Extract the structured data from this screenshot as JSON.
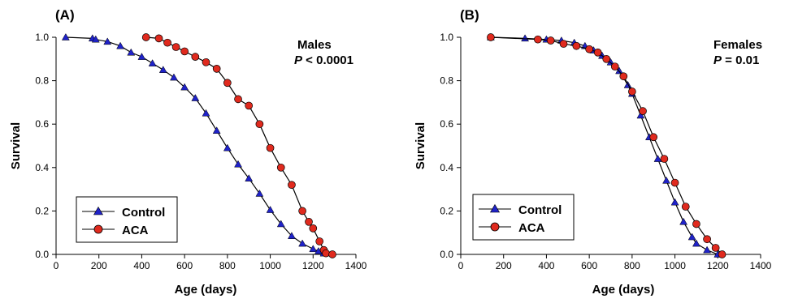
{
  "colors": {
    "control_marker": "#1f22c8",
    "aca_marker": "#e02a1e",
    "line": "#000000"
  },
  "marker_shapes": {
    "Control": "triangle",
    "ACA": "circle"
  },
  "chart_data": [
    {
      "type": "line",
      "panel_label": "(A)",
      "annotation_title": "Males",
      "annotation_p_symbol": "P",
      "annotation_p_rest": " < 0.0001",
      "xlabel": "Age (days)",
      "ylabel": "Survival",
      "xlim": [
        0,
        1400
      ],
      "ylim": [
        0,
        1.0
      ],
      "xticks": [
        0,
        200,
        400,
        600,
        800,
        1000,
        1200,
        1400
      ],
      "yticks": [
        0.0,
        0.2,
        0.4,
        0.6,
        0.8,
        1.0
      ],
      "xtick_labels": [
        "0",
        "200",
        "400",
        "600",
        "800",
        "1000",
        "1200",
        "1400"
      ],
      "ytick_labels": [
        "0.0",
        "0.2",
        "0.4",
        "0.6",
        "0.8",
        "1.0"
      ],
      "grid": false,
      "legend_position": "bottom-left",
      "series": [
        {
          "name": "Control",
          "x": [
            45,
            170,
            185,
            240,
            300,
            350,
            400,
            450,
            500,
            550,
            600,
            650,
            700,
            750,
            800,
            850,
            900,
            950,
            1000,
            1050,
            1100,
            1150,
            1200,
            1225,
            1250
          ],
          "y": [
            1.0,
            0.995,
            0.99,
            0.98,
            0.96,
            0.93,
            0.91,
            0.88,
            0.85,
            0.815,
            0.77,
            0.72,
            0.65,
            0.57,
            0.49,
            0.415,
            0.35,
            0.28,
            0.205,
            0.14,
            0.085,
            0.05,
            0.025,
            0.015,
            0.005
          ]
        },
        {
          "name": "ACA",
          "x": [
            420,
            480,
            520,
            560,
            600,
            650,
            700,
            750,
            800,
            850,
            900,
            950,
            1000,
            1050,
            1100,
            1150,
            1180,
            1200,
            1230,
            1250,
            1260,
            1290
          ],
          "y": [
            1.0,
            0.995,
            0.975,
            0.955,
            0.935,
            0.91,
            0.885,
            0.855,
            0.79,
            0.715,
            0.685,
            0.6,
            0.49,
            0.4,
            0.32,
            0.2,
            0.15,
            0.12,
            0.06,
            0.02,
            0.005,
            0.0
          ]
        }
      ]
    },
    {
      "type": "line",
      "panel_label": "(B)",
      "annotation_title": "Females",
      "annotation_p_symbol": "P",
      "annotation_p_rest": " = 0.01",
      "xlabel": "Age (days)",
      "ylabel": "Survival",
      "xlim": [
        0,
        1400
      ],
      "ylim": [
        0,
        1.0
      ],
      "xticks": [
        0,
        200,
        400,
        600,
        800,
        1000,
        1200,
        1400
      ],
      "yticks": [
        0.0,
        0.2,
        0.4,
        0.6,
        0.8,
        1.0
      ],
      "xtick_labels": [
        "0",
        "200",
        "400",
        "600",
        "800",
        "1000",
        "1200",
        "1400"
      ],
      "ytick_labels": [
        "0.0",
        "0.2",
        "0.4",
        "0.6",
        "0.8",
        "1.0"
      ],
      "grid": false,
      "legend_position": "bottom-left",
      "series": [
        {
          "name": "Control",
          "x": [
            140,
            300,
            400,
            470,
            530,
            580,
            620,
            660,
            700,
            740,
            780,
            800,
            840,
            880,
            920,
            960,
            1000,
            1040,
            1080,
            1100,
            1150,
            1200
          ],
          "y": [
            1.0,
            0.995,
            0.99,
            0.985,
            0.975,
            0.96,
            0.94,
            0.915,
            0.885,
            0.845,
            0.78,
            0.74,
            0.64,
            0.54,
            0.44,
            0.34,
            0.24,
            0.15,
            0.08,
            0.05,
            0.02,
            0.0
          ]
        },
        {
          "name": "ACA",
          "x": [
            140,
            360,
            420,
            480,
            540,
            600,
            640,
            680,
            720,
            760,
            800,
            850,
            900,
            950,
            1000,
            1050,
            1100,
            1150,
            1190,
            1220
          ],
          "y": [
            1.0,
            0.99,
            0.985,
            0.97,
            0.96,
            0.945,
            0.93,
            0.9,
            0.865,
            0.82,
            0.75,
            0.66,
            0.54,
            0.44,
            0.33,
            0.22,
            0.14,
            0.07,
            0.03,
            0.0
          ]
        }
      ]
    }
  ]
}
